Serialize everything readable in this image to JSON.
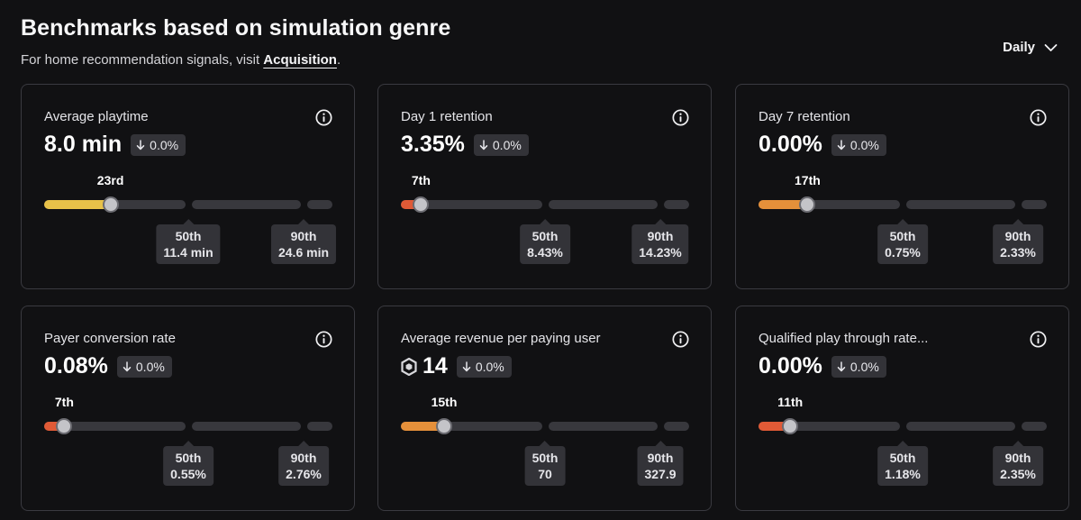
{
  "header": {
    "title": "Benchmarks based on simulation genre",
    "subtitle_prefix": "For home recommendation signals, visit ",
    "subtitle_link": "Acquisition",
    "subtitle_suffix": "."
  },
  "period": {
    "label": "Daily",
    "icon": "chevron-down-icon"
  },
  "colors": {
    "yellow": "#e8c249",
    "orange": "#e5903a",
    "red": "#e05a36",
    "track": "#38383d"
  },
  "cards": [
    {
      "label": "Average playtime",
      "value": "8.0 min",
      "delta": "0.0%",
      "rank": "23rd",
      "percentile": 23,
      "fill_color": "#e8c249",
      "p50_label": "50th",
      "p50_value": "11.4 min",
      "p90_label": "90th",
      "p90_value": "24.6 min"
    },
    {
      "label": "Day 1 retention",
      "value": "3.35%",
      "delta": "0.0%",
      "rank": "7th",
      "percentile": 7,
      "fill_color": "#e05a36",
      "p50_label": "50th",
      "p50_value": "8.43%",
      "p90_label": "90th",
      "p90_value": "14.23%"
    },
    {
      "label": "Day 7 retention",
      "value": "0.00%",
      "delta": "0.0%",
      "rank": "17th",
      "percentile": 17,
      "fill_color": "#e5903a",
      "p50_label": "50th",
      "p50_value": "0.75%",
      "p90_label": "90th",
      "p90_value": "2.33%"
    },
    {
      "label": "Payer conversion rate",
      "value": "0.08%",
      "delta": "0.0%",
      "rank": "7th",
      "percentile": 7,
      "fill_color": "#e05a36",
      "p50_label": "50th",
      "p50_value": "0.55%",
      "p90_label": "90th",
      "p90_value": "2.76%"
    },
    {
      "label": "Average revenue per paying user",
      "value": "14",
      "value_icon": "robux-icon",
      "delta": "0.0%",
      "rank": "15th",
      "percentile": 15,
      "fill_color": "#e5903a",
      "p50_label": "50th",
      "p50_value": "70",
      "p90_label": "90th",
      "p90_value": "327.9"
    },
    {
      "label": "Qualified play through rate...",
      "value": "0.00%",
      "delta": "0.0%",
      "rank": "11th",
      "percentile": 11,
      "fill_color": "#e05a36",
      "p50_label": "50th",
      "p50_value": "1.18%",
      "p90_label": "90th",
      "p90_value": "2.35%"
    }
  ]
}
